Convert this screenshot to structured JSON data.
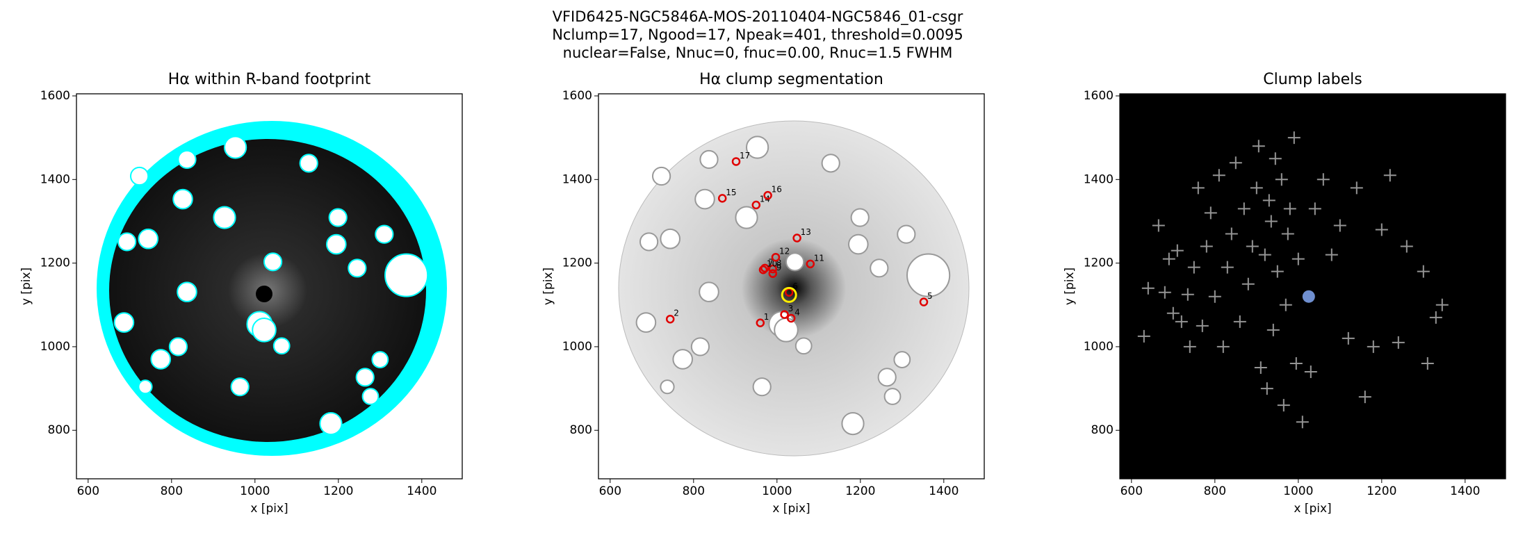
{
  "suptitle": [
    "VFID6425-NGC5846A-MOS-20110404-NGC5846_01-csgr",
    "Nclump=17, Ngood=17, Npeak=401, threshold=0.0095",
    "nuclear=False, Nnuc=0, fnuc=0.00, Rnuc=1.5 FWHM"
  ],
  "chart_data": [
    {
      "type": "image",
      "title": "Hα within R-band footprint",
      "xlabel": "x [pix]",
      "ylabel": "y [pix]",
      "xlim": [
        572,
        1497
      ],
      "ylim": [
        684,
        1605
      ],
      "xticks": [
        600,
        800,
        1000,
        1200,
        1400
      ],
      "yticks": [
        800,
        1000,
        1200,
        1400,
        1600
      ],
      "mask_edge": "#00ffff",
      "masks": [
        [
          953,
          1477,
          26
        ],
        [
          837,
          1448,
          21
        ],
        [
          1129,
          1439,
          21
        ],
        [
          723,
          1408,
          21
        ],
        [
          827,
          1353,
          23
        ],
        [
          927,
          1309,
          26
        ],
        [
          1199,
          1309,
          21
        ],
        [
          1310,
          1269,
          21
        ],
        [
          744,
          1258,
          23
        ],
        [
          693,
          1251,
          21
        ],
        [
          1195,
          1245,
          23
        ],
        [
          1043,
          1203,
          21
        ],
        [
          1245,
          1188,
          21
        ],
        [
          1363,
          1171,
          51
        ],
        [
          837,
          1131,
          23
        ],
        [
          686,
          1058,
          23
        ],
        [
          1011,
          1054,
          30
        ],
        [
          1022,
          1040,
          28
        ],
        [
          1064,
          1002,
          19
        ],
        [
          816,
          1000,
          21
        ],
        [
          774,
          970,
          23
        ],
        [
          964,
          904,
          21
        ],
        [
          1264,
          927,
          21
        ],
        [
          1300,
          969,
          19
        ],
        [
          1182,
          816,
          26
        ],
        [
          1277,
          881,
          19
        ],
        [
          737,
          904,
          16
        ]
      ]
    },
    {
      "type": "scatter",
      "title": "Hα clump segmentation",
      "xlabel": "x [pix]",
      "ylabel": "y [pix]",
      "xlim": [
        572,
        1497
      ],
      "ylim": [
        684,
        1605
      ],
      "xticks": [
        600,
        800,
        1000,
        1200,
        1400
      ],
      "yticks": [
        800,
        1000,
        1200,
        1400,
        1600
      ],
      "mask_edge": "#999999",
      "masks": [
        [
          953,
          1477,
          26
        ],
        [
          837,
          1448,
          21
        ],
        [
          1129,
          1439,
          21
        ],
        [
          723,
          1408,
          21
        ],
        [
          827,
          1353,
          23
        ],
        [
          927,
          1309,
          26
        ],
        [
          1199,
          1309,
          21
        ],
        [
          1310,
          1269,
          21
        ],
        [
          744,
          1258,
          23
        ],
        [
          693,
          1251,
          21
        ],
        [
          1195,
          1245,
          23
        ],
        [
          1043,
          1203,
          21
        ],
        [
          1245,
          1188,
          21
        ],
        [
          1363,
          1171,
          51
        ],
        [
          837,
          1131,
          23
        ],
        [
          686,
          1058,
          23
        ],
        [
          1011,
          1054,
          30
        ],
        [
          1022,
          1040,
          28
        ],
        [
          1064,
          1002,
          19
        ],
        [
          816,
          1000,
          21
        ],
        [
          774,
          970,
          23
        ],
        [
          964,
          904,
          21
        ],
        [
          1264,
          927,
          21
        ],
        [
          1300,
          969,
          19
        ],
        [
          1182,
          816,
          26
        ],
        [
          1277,
          881,
          19
        ],
        [
          737,
          904,
          16
        ]
      ],
      "color": "#e00000",
      "x": [
        960,
        744,
        1018,
        1034,
        1352,
        1029,
        971,
        990,
        990,
        967,
        1080,
        997,
        1048,
        950,
        869,
        978,
        902
      ],
      "y": [
        1057,
        1066,
        1077,
        1068,
        1107,
        1130,
        1188,
        1186,
        1175,
        1184,
        1198,
        1214,
        1260,
        1339,
        1355,
        1362,
        1443
      ],
      "labels": [
        "1",
        "2",
        "3",
        "4",
        "5",
        "6",
        "7",
        "8",
        "9",
        "10",
        "11",
        "12",
        "13",
        "14",
        "15",
        "16",
        "17"
      ],
      "nucleus": {
        "x": 1029,
        "y": 1124,
        "color": "#ffee00"
      }
    },
    {
      "type": "peaks",
      "title": "Clump labels",
      "xlabel": "x [pix]",
      "ylabel": "y [pix]",
      "xlim": [
        572,
        1497
      ],
      "ylim": [
        684,
        1605
      ],
      "xticks": [
        600,
        800,
        1000,
        1200,
        1400
      ],
      "yticks": [
        800,
        1000,
        1200,
        1400,
        1600
      ],
      "color": "#bbbbbb",
      "x": [
        630,
        640,
        665,
        680,
        690,
        700,
        710,
        720,
        735,
        740,
        750,
        760,
        770,
        780,
        790,
        800,
        810,
        820,
        830,
        840,
        850,
        860,
        870,
        880,
        890,
        900,
        905,
        910,
        920,
        925,
        930,
        935,
        940,
        945,
        950,
        960,
        965,
        970,
        975,
        980,
        990,
        995,
        1000,
        1010,
        1030,
        1040,
        1060,
        1080,
        1100,
        1120,
        1140,
        1160,
        1180,
        1200,
        1220,
        1240,
        1260,
        1300,
        1310,
        1330,
        1345
      ],
      "y": [
        1025,
        1140,
        1290,
        1130,
        1210,
        1080,
        1230,
        1060,
        1125,
        1000,
        1190,
        1380,
        1050,
        1240,
        1320,
        1120,
        1410,
        1000,
        1190,
        1270,
        1440,
        1060,
        1330,
        1150,
        1240,
        1380,
        1480,
        950,
        1220,
        900,
        1350,
        1300,
        1040,
        1450,
        1180,
        1400,
        860,
        1100,
        1270,
        1330,
        1500,
        960,
        1210,
        820,
        940,
        1330,
        1400,
        1220,
        1290,
        1020,
        1380,
        880,
        1000,
        1280,
        1410,
        1010,
        1240,
        1180,
        960,
        1070,
        1100
      ],
      "nucleus": {
        "x": 1025,
        "y": 1120,
        "color": "#6f8fd0"
      }
    }
  ]
}
